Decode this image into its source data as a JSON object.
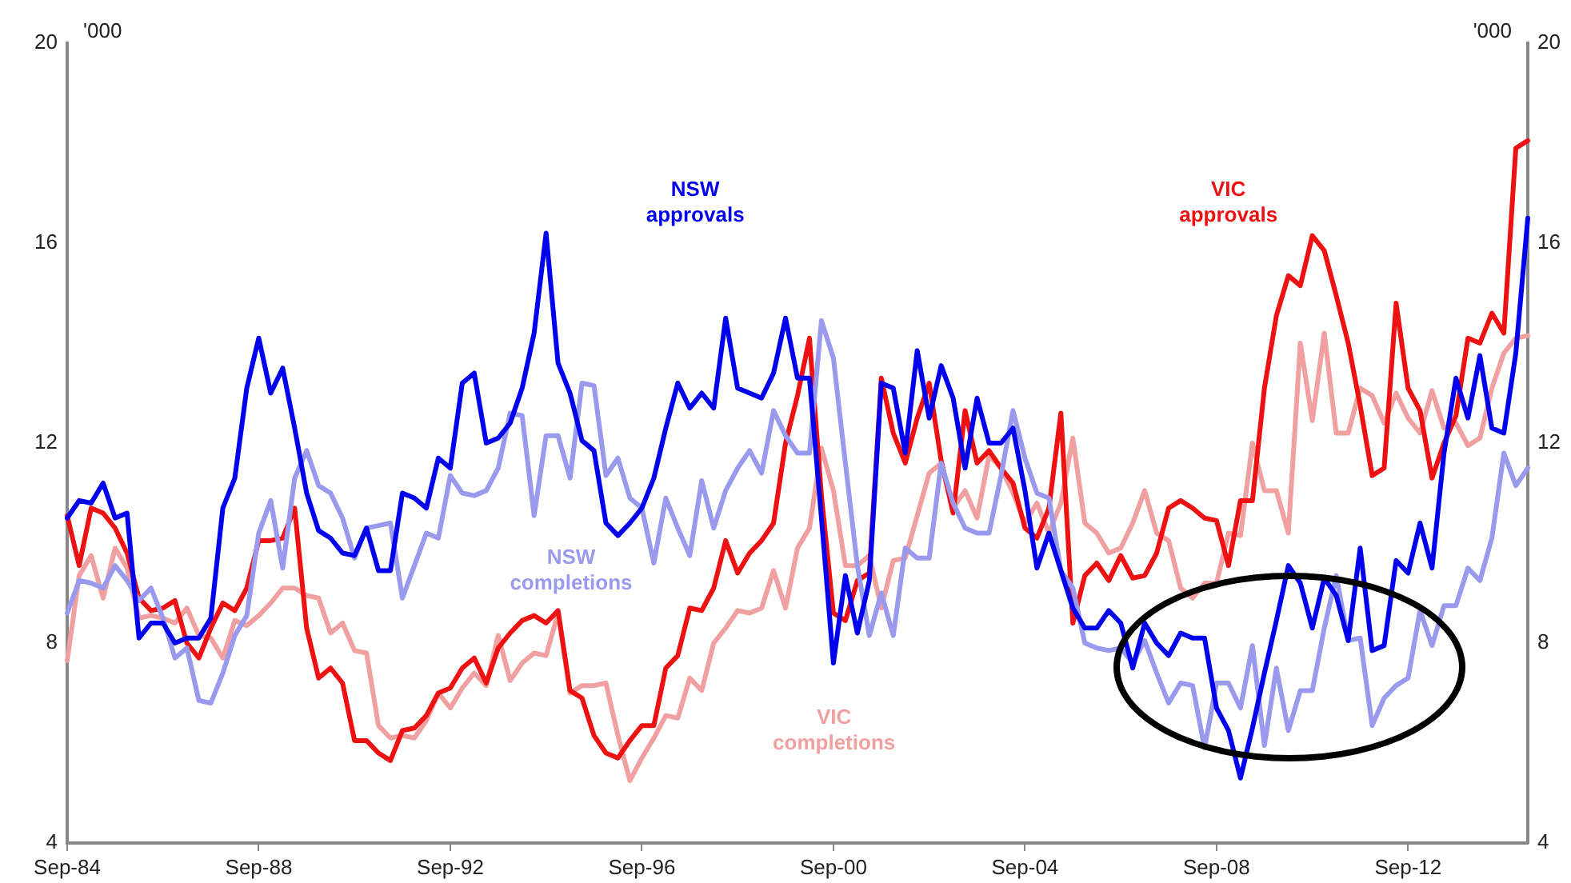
{
  "chart_data": {
    "type": "line",
    "ylabel": "'000",
    "y2label": "'000",
    "categories": [
      "Sep-84",
      null,
      null,
      null,
      null,
      null,
      null,
      null,
      null,
      null,
      null,
      null,
      null,
      null,
      null,
      null,
      "Sep-88",
      null,
      null,
      null,
      null,
      null,
      null,
      null,
      null,
      null,
      null,
      null,
      null,
      null,
      null,
      null,
      "Sep-92",
      null,
      null,
      null,
      null,
      null,
      null,
      null,
      null,
      null,
      null,
      null,
      null,
      null,
      null,
      null,
      "Sep-96",
      null,
      null,
      null,
      null,
      null,
      null,
      null,
      null,
      null,
      null,
      null,
      null,
      null,
      null,
      null,
      "Sep-00",
      null,
      null,
      null,
      null,
      null,
      null,
      null,
      null,
      null,
      null,
      null,
      null,
      null,
      null,
      null,
      "Sep-04",
      null,
      null,
      null,
      null,
      null,
      null,
      null,
      null,
      null,
      null,
      null,
      null,
      null,
      null,
      null,
      "Sep-08",
      null,
      null,
      null,
      null,
      null,
      null,
      null,
      null,
      null,
      null,
      null,
      null,
      null,
      null,
      null,
      "Sep-12",
      null,
      null,
      null,
      null,
      null,
      null,
      null,
      null,
      null,
      null
    ],
    "series": [
      {
        "name": "NSW approvals",
        "color": "#0000ee",
        "values": [
          10.5,
          10.85,
          10.8,
          11.2,
          10.5,
          10.6,
          8.1,
          8.4,
          8.4,
          8.0,
          8.1,
          8.1,
          8.5,
          10.7,
          11.3,
          13.1,
          14.1,
          13.0,
          13.5,
          12.3,
          11.0,
          10.25,
          10.1,
          9.8,
          9.75,
          10.3,
          9.45,
          9.45,
          11.0,
          10.9,
          10.7,
          11.7,
          11.5,
          13.2,
          13.4,
          12.0,
          12.1,
          12.4,
          13.1,
          14.2,
          16.2,
          13.6,
          13.0,
          12.05,
          11.85,
          10.4,
          10.15,
          10.4,
          10.7,
          11.3,
          12.3,
          13.2,
          12.7,
          13.0,
          12.7,
          14.5,
          13.1,
          13.0,
          12.9,
          13.4,
          14.5,
          13.3,
          13.3,
          10.5,
          7.6,
          9.35,
          8.2,
          9.25,
          13.2,
          13.1,
          11.8,
          13.85,
          12.5,
          13.55,
          12.9,
          11.5,
          12.9,
          12.0,
          12.0,
          12.3,
          11.05,
          9.5,
          10.2,
          9.45,
          8.7,
          8.3,
          8.3,
          8.65,
          8.4,
          7.5,
          8.4,
          8.0,
          7.75,
          8.2,
          8.1,
          8.1,
          6.7,
          6.25,
          5.3,
          6.3,
          7.4,
          8.45,
          9.55,
          9.2,
          8.3,
          9.3,
          8.95,
          8.05,
          9.9,
          7.85,
          7.95,
          9.65,
          9.4,
          10.4,
          9.5,
          11.8,
          13.3,
          12.5,
          13.75,
          12.3,
          12.2,
          13.8,
          16.5
        ]
      },
      {
        "name": "NSW completions",
        "color": "#9999ee",
        "values": [
          8.6,
          9.25,
          9.2,
          9.1,
          9.55,
          9.25,
          8.85,
          9.1,
          8.5,
          7.7,
          7.9,
          6.85,
          6.8,
          7.4,
          8.15,
          8.55,
          10.2,
          10.85,
          9.5,
          11.3,
          11.85,
          11.15,
          11.0,
          10.5,
          9.7,
          10.3,
          10.35,
          10.4,
          8.9,
          9.55,
          10.2,
          10.1,
          11.35,
          11.0,
          10.95,
          11.05,
          11.5,
          12.6,
          12.55,
          10.55,
          12.15,
          12.15,
          11.3,
          13.2,
          13.15,
          11.35,
          11.7,
          10.9,
          10.7,
          9.6,
          10.9,
          10.3,
          9.75,
          11.25,
          10.3,
          11.05,
          11.5,
          11.85,
          11.4,
          12.65,
          12.15,
          11.8,
          11.8,
          14.45,
          13.7,
          11.6,
          9.55,
          8.15,
          9.0,
          8.15,
          9.9,
          9.7,
          9.7,
          11.6,
          10.8,
          10.3,
          10.2,
          10.2,
          11.35,
          12.65,
          11.7,
          11.0,
          10.9,
          9.45,
          9.1,
          8.0,
          7.9,
          7.85,
          7.9,
          7.6,
          8.05,
          7.4,
          6.8,
          7.2,
          7.15,
          5.9,
          7.2,
          7.2,
          6.7,
          7.95,
          5.95,
          7.5,
          6.25,
          7.05,
          7.05,
          8.3,
          9.35,
          8.05,
          8.1,
          6.35,
          6.9,
          7.15,
          7.3,
          8.65,
          7.95,
          8.75,
          8.75,
          9.5,
          9.25,
          10.1,
          11.8,
          11.15,
          11.5
        ]
      },
      {
        "name": "VIC approvals",
        "color": "#ee1111",
        "values": [
          10.55,
          9.55,
          10.7,
          10.6,
          10.3,
          9.8,
          8.9,
          8.65,
          8.7,
          8.85,
          8.0,
          7.7,
          8.3,
          8.8,
          8.65,
          9.1,
          10.05,
          10.05,
          10.1,
          10.7,
          8.3,
          7.3,
          7.5,
          7.2,
          6.05,
          6.05,
          5.8,
          5.65,
          6.25,
          6.3,
          6.55,
          7.0,
          7.1,
          7.5,
          7.7,
          7.2,
          7.9,
          8.2,
          8.45,
          8.55,
          8.4,
          8.65,
          7.05,
          6.9,
          6.15,
          5.8,
          5.7,
          6.05,
          6.35,
          6.35,
          7.5,
          7.75,
          8.7,
          8.65,
          9.1,
          10.05,
          9.4,
          9.8,
          10.05,
          10.4,
          12.0,
          12.95,
          14.1,
          10.95,
          8.6,
          8.45,
          9.25,
          9.4,
          13.3,
          12.2,
          11.6,
          12.5,
          13.2,
          11.65,
          10.6,
          12.65,
          11.6,
          11.85,
          11.5,
          11.2,
          10.3,
          10.1,
          10.7,
          12.6,
          8.4,
          9.35,
          9.6,
          9.25,
          9.75,
          9.3,
          9.35,
          9.8,
          10.7,
          10.85,
          10.7,
          10.5,
          10.45,
          9.55,
          10.85,
          10.85,
          13.1,
          14.55,
          15.35,
          15.15,
          16.15,
          15.85,
          14.95,
          14.0,
          12.75,
          11.35,
          11.5,
          14.8,
          13.1,
          12.65,
          11.3,
          12.0,
          12.55,
          14.1,
          14.0,
          14.6,
          14.2,
          17.9,
          18.05
        ]
      },
      {
        "name": "VIC completions",
        "color": "#f0a0a0",
        "values": [
          7.65,
          9.35,
          9.75,
          8.9,
          9.9,
          9.5,
          8.5,
          8.55,
          8.5,
          8.4,
          8.7,
          8.15,
          8.1,
          7.7,
          8.45,
          8.35,
          8.55,
          8.8,
          9.1,
          9.1,
          8.95,
          8.9,
          8.2,
          8.4,
          7.85,
          7.8,
          6.35,
          6.1,
          6.15,
          6.1,
          6.45,
          7.0,
          6.7,
          7.1,
          7.4,
          7.15,
          8.15,
          7.25,
          7.6,
          7.8,
          7.75,
          8.6,
          7.0,
          7.15,
          7.15,
          7.2,
          6.15,
          5.25,
          5.7,
          6.1,
          6.55,
          6.5,
          7.3,
          7.05,
          8.0,
          8.3,
          8.65,
          8.6,
          8.7,
          9.45,
          8.7,
          9.9,
          10.3,
          11.9,
          11.05,
          9.55,
          9.55,
          9.75,
          8.7,
          9.65,
          9.7,
          10.55,
          11.4,
          11.6,
          10.7,
          11.05,
          10.5,
          11.75,
          11.5,
          11.0,
          10.4,
          10.8,
          10.2,
          10.8,
          12.1,
          10.4,
          10.2,
          9.8,
          9.9,
          10.4,
          11.05,
          10.2,
          10.05,
          9.1,
          8.9,
          9.2,
          9.2,
          10.2,
          10.15,
          12.0,
          11.05,
          11.05,
          10.2,
          14.0,
          12.45,
          14.2,
          12.2,
          12.2,
          13.1,
          12.95,
          12.4,
          13.0,
          12.5,
          12.2,
          13.05,
          12.3,
          12.4,
          11.95,
          12.1,
          13.1,
          13.8,
          14.1,
          14.15
        ]
      }
    ],
    "ylim": [
      4,
      20
    ],
    "yticks": [
      4,
      8,
      12,
      16,
      20
    ],
    "y2lim": [
      4,
      20
    ],
    "y2ticks": [
      4,
      8,
      12,
      16,
      20
    ],
    "grid": false,
    "legend": false,
    "marker": "none",
    "line_style": "solid"
  }
}
